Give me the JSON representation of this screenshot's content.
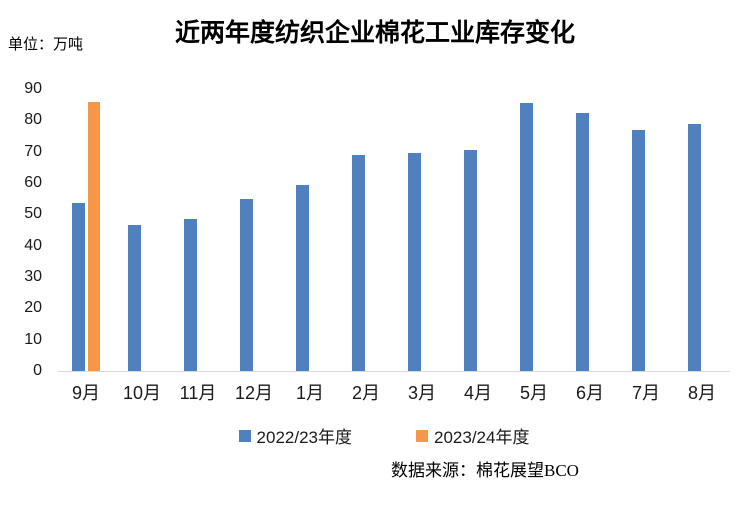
{
  "title": "近两年度纺织企业棉花工业库存变化",
  "unit_label": "单位：万吨",
  "source": "数据来源：棉花展望BCO",
  "chart_data": {
    "type": "bar",
    "title": "近两年度纺织企业棉花工业库存变化",
    "ylabel": "单位：万吨",
    "categories": [
      "9月",
      "10月",
      "11月",
      "12月",
      "1月",
      "2月",
      "3月",
      "4月",
      "5月",
      "6月",
      "7月",
      "8月"
    ],
    "series": [
      {
        "name": "2022/23年度",
        "color": "#4E81BD",
        "values": [
          53.5,
          46.5,
          48.5,
          55,
          59.5,
          68.8,
          69.5,
          70.5,
          85.5,
          82.3,
          77,
          78.8
        ]
      },
      {
        "name": "2023/24年度",
        "color": "#F79646",
        "values": [
          86,
          null,
          null,
          null,
          null,
          null,
          null,
          null,
          null,
          null,
          null,
          null
        ]
      }
    ],
    "ylim": [
      0,
      90
    ],
    "ytick_step": 10,
    "grid": false,
    "legend_position": "bottom",
    "axis_color": "#D9D9D9"
  }
}
